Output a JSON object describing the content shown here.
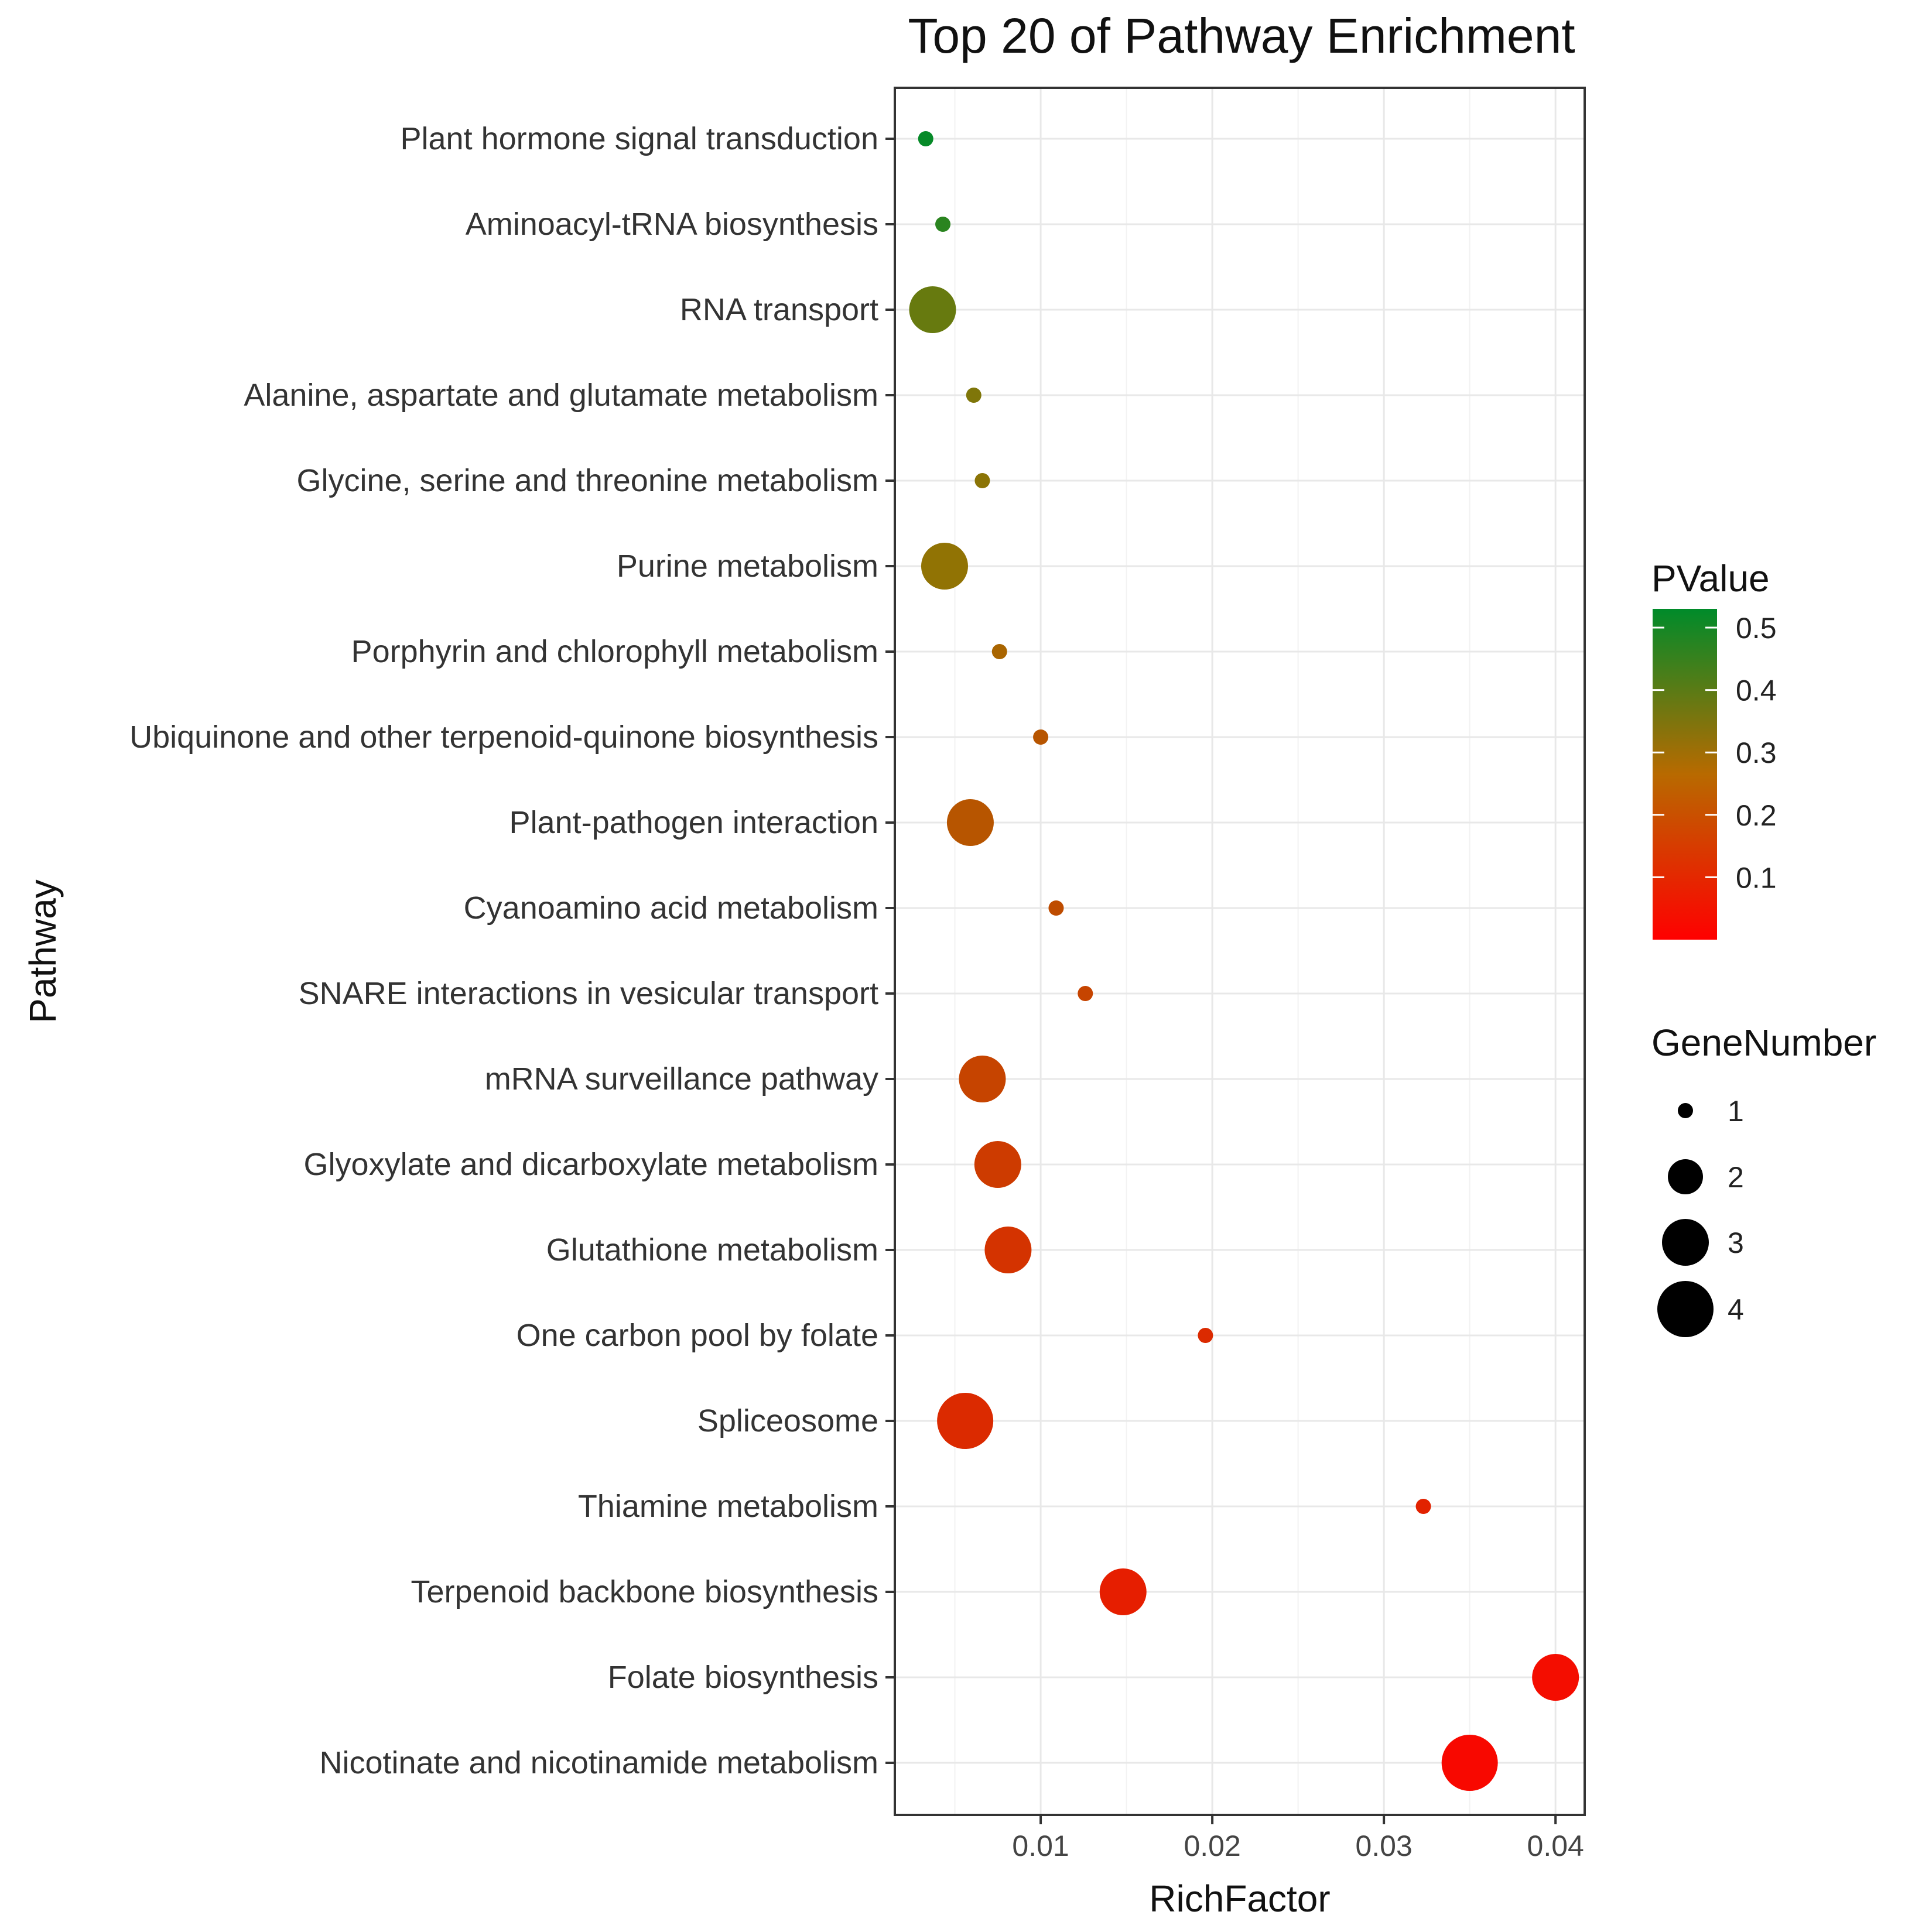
{
  "chart_data": {
    "type": "scatter",
    "title": "Top 20 of Pathway Enrichment",
    "xlabel": "RichFactor",
    "ylabel": "Pathway",
    "xlim": [
      0.0015,
      0.0417
    ],
    "xticks": [
      0.01,
      0.02,
      0.03,
      0.04
    ],
    "xtick_labels": [
      "0.01",
      "0.02",
      "0.03",
      "0.04"
    ],
    "grid": true,
    "points": [
      {
        "pathway": "Plant hormone signal transduction",
        "rich_factor": 0.0033,
        "p_value": 0.52,
        "gene_number": 1
      },
      {
        "pathway": "Aminoacyl-tRNA biosynthesis",
        "rich_factor": 0.0043,
        "p_value": 0.46,
        "gene_number": 1
      },
      {
        "pathway": "RNA transport",
        "rich_factor": 0.0037,
        "p_value": 0.36,
        "gene_number": 3
      },
      {
        "pathway": "Alanine, aspartate and glutamate metabolism",
        "rich_factor": 0.0061,
        "p_value": 0.32,
        "gene_number": 1
      },
      {
        "pathway": "Glycine, serine and threonine metabolism",
        "rich_factor": 0.0066,
        "p_value": 0.3,
        "gene_number": 1
      },
      {
        "pathway": "Purine metabolism",
        "rich_factor": 0.0044,
        "p_value": 0.29,
        "gene_number": 3
      },
      {
        "pathway": "Porphyrin and chlorophyll metabolism",
        "rich_factor": 0.0076,
        "p_value": 0.24,
        "gene_number": 1
      },
      {
        "pathway": "Ubiquinone and other terpenoid-quinone biosynthesis",
        "rich_factor": 0.01,
        "p_value": 0.2,
        "gene_number": 1
      },
      {
        "pathway": "Plant-pathogen interaction",
        "rich_factor": 0.0059,
        "p_value": 0.2,
        "gene_number": 3
      },
      {
        "pathway": "Cyanoamino acid metabolism",
        "rich_factor": 0.0109,
        "p_value": 0.18,
        "gene_number": 1
      },
      {
        "pathway": "SNARE interactions in vesicular transport",
        "rich_factor": 0.0126,
        "p_value": 0.16,
        "gene_number": 1
      },
      {
        "pathway": "mRNA surveillance pathway",
        "rich_factor": 0.0066,
        "p_value": 0.16,
        "gene_number": 3
      },
      {
        "pathway": "Glyoxylate and dicarboxylate metabolism",
        "rich_factor": 0.0075,
        "p_value": 0.14,
        "gene_number": 3
      },
      {
        "pathway": "Glutathione metabolism",
        "rich_factor": 0.0081,
        "p_value": 0.12,
        "gene_number": 3
      },
      {
        "pathway": "One carbon pool by folate",
        "rich_factor": 0.0196,
        "p_value": 0.1,
        "gene_number": 1
      },
      {
        "pathway": "Spliceosome",
        "rich_factor": 0.0056,
        "p_value": 0.1,
        "gene_number": 4
      },
      {
        "pathway": "Thiamine metabolism",
        "rich_factor": 0.0323,
        "p_value": 0.08,
        "gene_number": 1
      },
      {
        "pathway": "Terpenoid backbone biosynthesis",
        "rich_factor": 0.0148,
        "p_value": 0.07,
        "gene_number": 3
      },
      {
        "pathway": "Folate biosynthesis",
        "rich_factor": 0.04,
        "p_value": 0.03,
        "gene_number": 3
      },
      {
        "pathway": "Nicotinate and nicotinamide metabolism",
        "rich_factor": 0.035,
        "p_value": 0.02,
        "gene_number": 4
      }
    ],
    "color_legend": {
      "title": "PValue",
      "min": 0.0,
      "max": 0.53,
      "ticks": [
        0.5,
        0.4,
        0.3,
        0.2,
        0.1
      ],
      "tick_labels": [
        "0.5",
        "0.4",
        "0.3",
        "0.2",
        "0.1"
      ],
      "color_low": "#ff0000",
      "color_mid": "#a07000",
      "color_high": "#008b2a"
    },
    "size_legend": {
      "title": "GeneNumber",
      "values": [
        1,
        2,
        3,
        4
      ],
      "labels": [
        "1",
        "2",
        "3",
        "4"
      ]
    }
  }
}
